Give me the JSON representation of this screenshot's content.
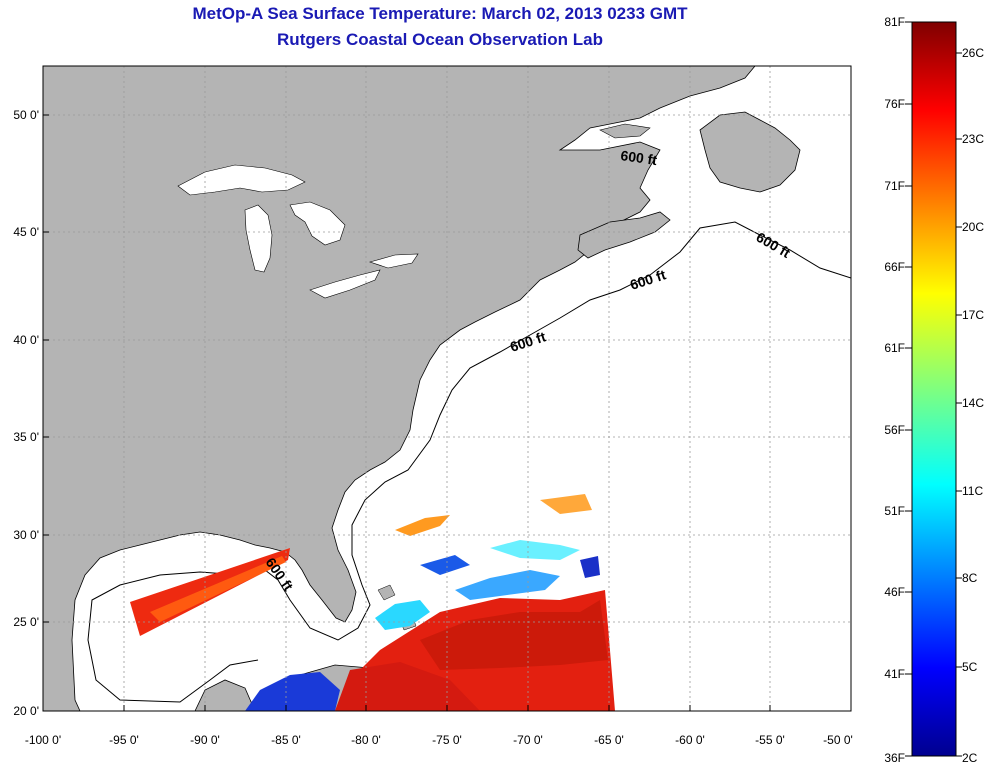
{
  "header": {
    "title": "MetOp-A Sea Surface Temperature:  March 02, 2013 0233 GMT",
    "subtitle": "Rutgers Coastal Ocean Observation Lab"
  },
  "map": {
    "lon_ticks": [
      "-100 0'",
      "-95 0'",
      "-90 0'",
      "-85 0'",
      "-80 0'",
      "-75 0'",
      "-70 0'",
      "-65 0'",
      "-60 0'",
      "-55 0'",
      "-50 0'"
    ],
    "lat_ticks": [
      "20 0'",
      "25 0'",
      "30 0'",
      "35 0'",
      "40 0'",
      "45 0'",
      "50 0'"
    ],
    "lon_range": [
      -100,
      -50
    ],
    "lat_range": [
      20,
      52.5
    ],
    "contour_label": "600 ft",
    "colors": {
      "land": "#b4b4b4",
      "ocean": "#ffffff",
      "grid": "#9a9a9a"
    }
  },
  "colorbar": {
    "fahrenheit_labels": [
      "81F",
      "76F",
      "71F",
      "66F",
      "61F",
      "56F",
      "51F",
      "46F",
      "41F",
      "36F"
    ],
    "celsius_labels": [
      "26C",
      "23C",
      "20C",
      "17C",
      "14C",
      "11C",
      "8C",
      "5C",
      "2C"
    ],
    "colormap": "jet"
  }
}
